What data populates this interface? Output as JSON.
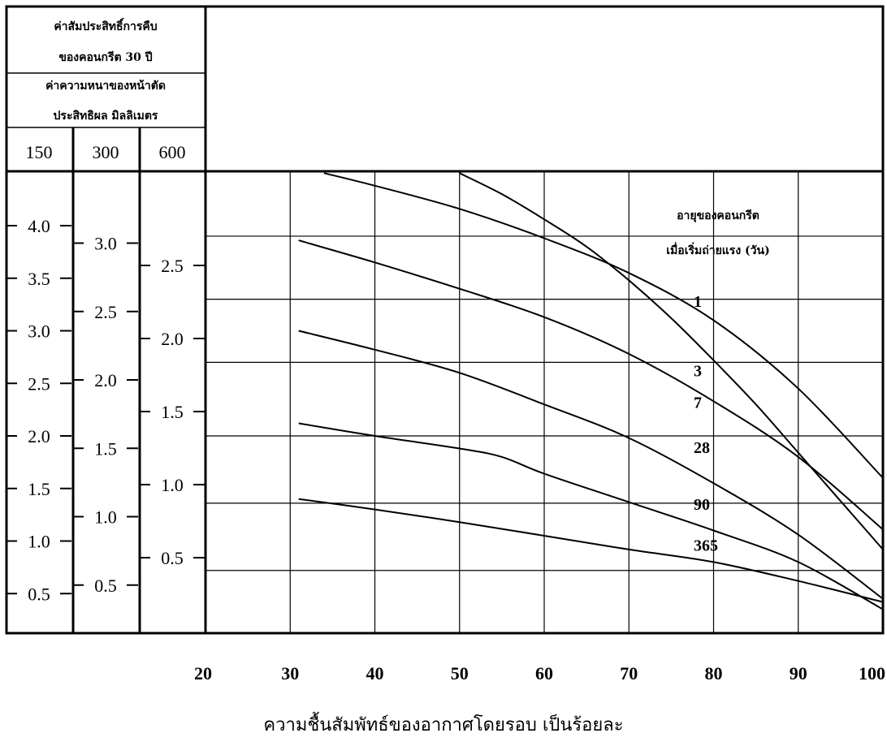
{
  "chart_data": {
    "type": "line",
    "header": {
      "title_line1": "ค่าสัมประสิทธิ์การคืบ",
      "title_line2": "ของคอนกรีต 30 ปี",
      "subtitle_line1": "ค่าความหนาของหน้าตัด",
      "subtitle_line2": "ประสิทธิผล มิลลิเมตร",
      "sizes": [
        "150",
        "300",
        "600"
      ]
    },
    "y_scales": [
      {
        "size": "150",
        "ticks": [
          {
            "label": "4.0",
            "value": 4.0
          },
          {
            "label": "3.5",
            "value": 3.5
          },
          {
            "label": "3.0",
            "value": 3.0
          },
          {
            "label": "2.5",
            "value": 2.5
          },
          {
            "label": "2.0",
            "value": 2.0
          },
          {
            "label": "1.5",
            "value": 1.5
          },
          {
            "label": "1.0",
            "value": 1.0
          },
          {
            "label": "0.5",
            "value": 0.5
          }
        ]
      },
      {
        "size": "300",
        "ticks": [
          {
            "label": "3.0",
            "value": 3.0
          },
          {
            "label": "2.5",
            "value": 2.5
          },
          {
            "label": "2.0",
            "value": 2.0
          },
          {
            "label": "1.5",
            "value": 1.5
          },
          {
            "label": "1.0",
            "value": 1.0
          },
          {
            "label": "0.5",
            "value": 0.5
          }
        ]
      },
      {
        "size": "600",
        "ticks": [
          {
            "label": "2.5",
            "value": 2.5
          },
          {
            "label": "2.0",
            "value": 2.0
          },
          {
            "label": "1.5",
            "value": 1.5
          },
          {
            "label": "1.0",
            "value": 1.0
          },
          {
            "label": "0.5",
            "value": 0.5
          }
        ]
      }
    ],
    "x_ticks": [
      "20",
      "30",
      "40",
      "50",
      "60",
      "70",
      "80",
      "90",
      "100"
    ],
    "xlim": [
      20,
      100
    ],
    "ylim_150": [
      0,
      4.5
    ],
    "xlabel": "ความชื้นสัมพัทธ์ของอากาศโดยรอบ เป็นร้อยละ",
    "legend_title_line1": "อายุของคอนกรีต",
    "legend_title_line2": "เมื่อเริ่มถ่ายแรง (วัน)",
    "grid": true,
    "series": [
      {
        "name": "1",
        "label_at": [
          74,
          3.29
        ],
        "points": [
          [
            34,
            4.5
          ],
          [
            40,
            4.38
          ],
          [
            50,
            4.16
          ],
          [
            60,
            3.88
          ],
          [
            70,
            3.55
          ],
          [
            80,
            3.1
          ],
          [
            90,
            2.45
          ],
          [
            100,
            1.6
          ]
        ]
      },
      {
        "name": "3",
        "label_at": [
          74,
          2.63
        ],
        "points": [
          [
            50,
            4.5
          ],
          [
            55,
            4.3
          ],
          [
            60,
            4.06
          ],
          [
            65,
            3.8
          ],
          [
            70,
            3.48
          ],
          [
            75,
            3.12
          ],
          [
            80,
            2.72
          ],
          [
            85,
            2.3
          ],
          [
            90,
            1.84
          ],
          [
            95,
            1.38
          ],
          [
            100,
            0.92
          ]
        ]
      },
      {
        "name": "7",
        "label_at": [
          74,
          2.33
        ],
        "points": [
          [
            31,
            3.86
          ],
          [
            40,
            3.65
          ],
          [
            50,
            3.4
          ],
          [
            60,
            3.13
          ],
          [
            70,
            2.78
          ],
          [
            80,
            2.33
          ],
          [
            90,
            1.8
          ],
          [
            100,
            1.11
          ]
        ]
      },
      {
        "name": "28",
        "label_at": [
          74,
          1.9
        ],
        "points": [
          [
            31,
            3.0
          ],
          [
            40,
            2.82
          ],
          [
            50,
            2.6
          ],
          [
            60,
            2.3
          ],
          [
            70,
            1.98
          ],
          [
            80,
            1.55
          ],
          [
            90,
            1.06
          ],
          [
            100,
            0.45
          ]
        ]
      },
      {
        "name": "90",
        "label_at": [
          74,
          1.36
        ],
        "points": [
          [
            31,
            2.12
          ],
          [
            40,
            2.0
          ],
          [
            50,
            1.88
          ],
          [
            55,
            1.8
          ],
          [
            60,
            1.64
          ],
          [
            70,
            1.37
          ],
          [
            80,
            1.1
          ],
          [
            90,
            0.8
          ],
          [
            100,
            0.35
          ]
        ]
      },
      {
        "name": "365",
        "label_at": [
          74,
          0.97
        ],
        "points": [
          [
            31,
            1.4
          ],
          [
            40,
            1.3
          ],
          [
            50,
            1.18
          ],
          [
            60,
            1.05
          ],
          [
            70,
            0.92
          ],
          [
            80,
            0.8
          ],
          [
            90,
            0.62
          ],
          [
            100,
            0.42
          ]
        ]
      }
    ]
  }
}
